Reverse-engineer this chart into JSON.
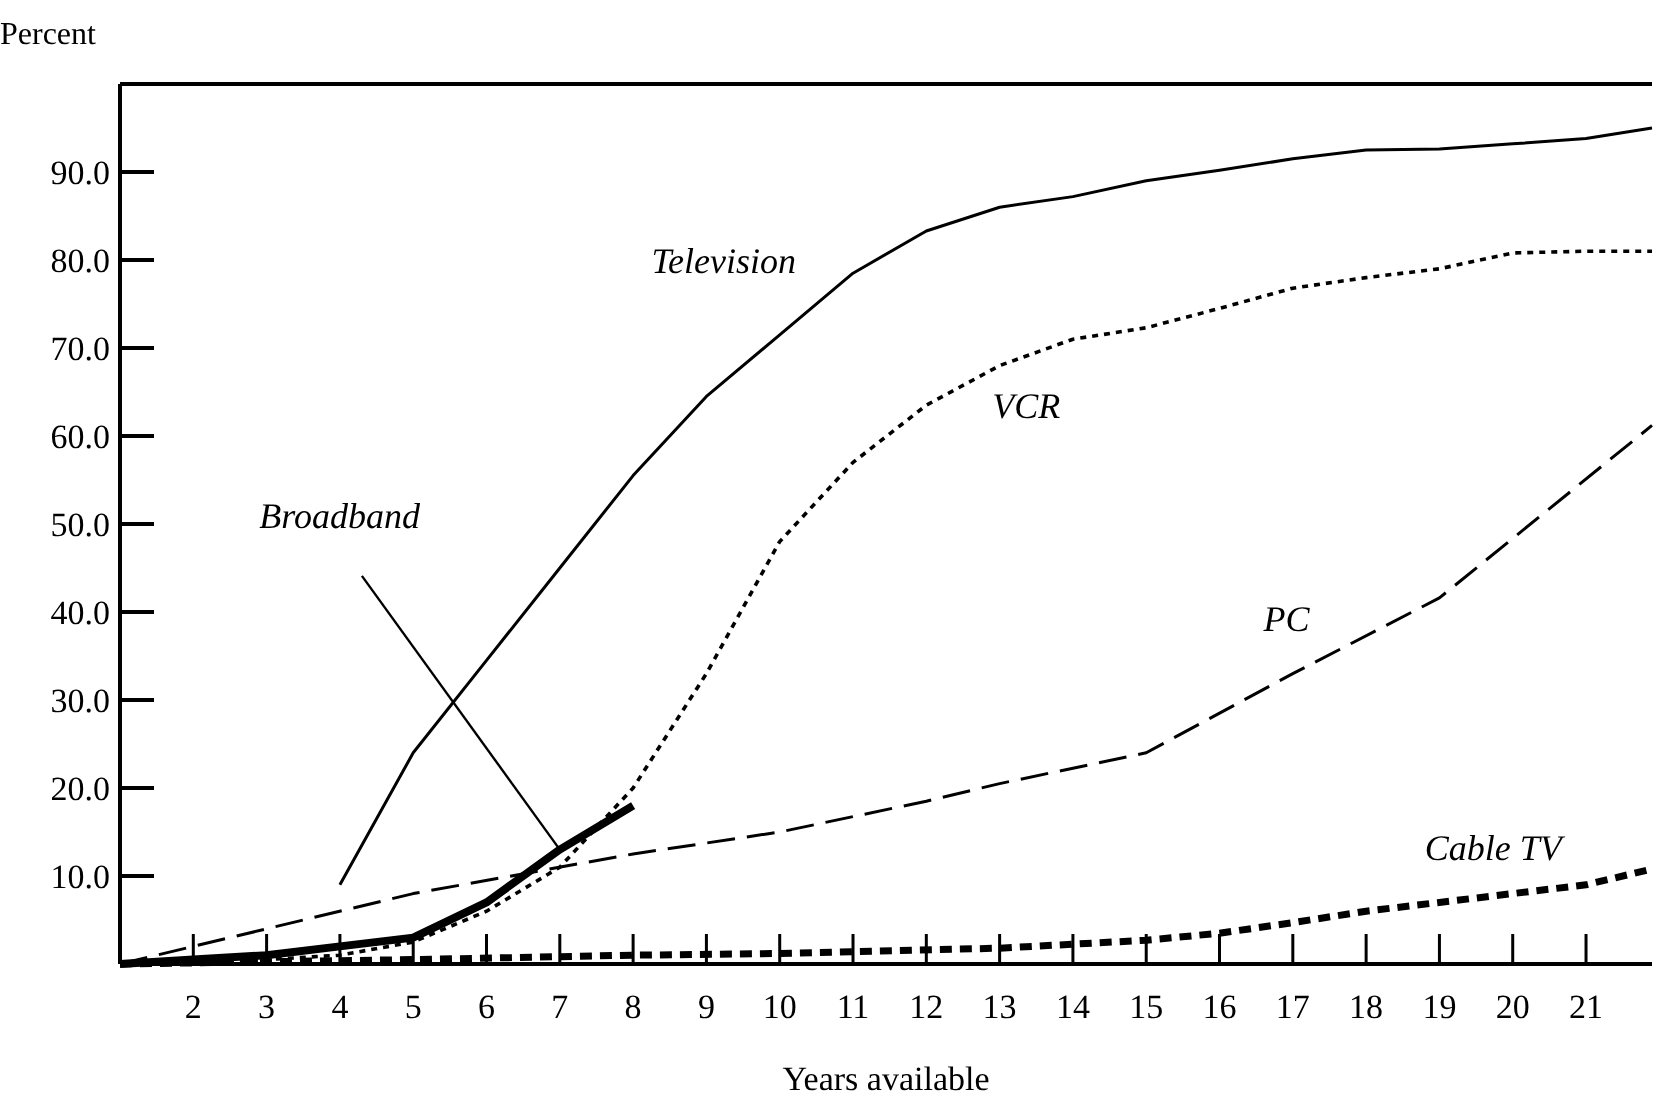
{
  "chart_data": {
    "type": "line",
    "xlabel": "Years available",
    "ylabel": "Percent",
    "xlim": [
      1,
      21.9
    ],
    "ylim": [
      0,
      100
    ],
    "xticks": [
      2,
      3,
      4,
      5,
      6,
      7,
      8,
      9,
      10,
      11,
      12,
      13,
      14,
      15,
      16,
      17,
      18,
      19,
      20,
      21
    ],
    "yticks": [
      {
        "value": 10,
        "label": "10.0"
      },
      {
        "value": 20,
        "label": "20.0"
      },
      {
        "value": 30,
        "label": "30.0"
      },
      {
        "value": 40,
        "label": "40.0"
      },
      {
        "value": 50,
        "label": "50.0"
      },
      {
        "value": 60,
        "label": "60.0"
      },
      {
        "value": 70,
        "label": "70.0"
      },
      {
        "value": 80,
        "label": "80.0"
      },
      {
        "value": 90,
        "label": "90.0"
      }
    ],
    "series": [
      {
        "name": "Television",
        "color": "#000000",
        "line_style": "solid",
        "x": [
          4,
          5,
          6,
          7,
          8,
          9,
          10,
          11,
          12,
          13,
          14,
          15,
          16,
          17,
          18,
          19,
          20,
          21,
          21.9
        ],
        "values": [
          9,
          24,
          34.5,
          45,
          55.5,
          64.5,
          71.5,
          78.5,
          83.3,
          86,
          87.2,
          89,
          90.2,
          91.5,
          92.5,
          92.6,
          93.2,
          93.8,
          95
        ]
      },
      {
        "name": "VCR",
        "color": "#000000",
        "line_style": "dotted",
        "x": [
          1,
          2,
          3,
          4,
          5,
          6,
          7,
          8,
          9,
          10,
          11,
          12,
          13,
          14,
          15,
          16,
          17,
          18,
          19,
          20,
          21,
          21.9
        ],
        "values": [
          0,
          0,
          0.5,
          1,
          2.5,
          6,
          11,
          20,
          33,
          48,
          57,
          63.5,
          68,
          71,
          72.3,
          74.5,
          76.8,
          78,
          79,
          80.8,
          81,
          81
        ]
      },
      {
        "name": "PC",
        "color": "#000000",
        "line_style": "dashed",
        "x": [
          1,
          3,
          5,
          8,
          10,
          12,
          13,
          15,
          17,
          19,
          21.9
        ],
        "values": [
          0,
          4,
          8,
          12.5,
          15,
          18.5,
          20.5,
          24,
          33,
          41.6,
          61.2
        ]
      },
      {
        "name": "Cable TV",
        "color": "#000000",
        "line_style": "dashed",
        "x": [
          1,
          5,
          8,
          10,
          13,
          15,
          16,
          17,
          18,
          19,
          20,
          21,
          21.9
        ],
        "values": [
          0,
          0.5,
          1,
          1.2,
          1.8,
          2.7,
          3.5,
          4.7,
          6,
          7,
          8,
          9,
          10.8
        ]
      },
      {
        "name": "Broadband",
        "color": "#000000",
        "line_style": "solid",
        "x": [
          1,
          2,
          3,
          4,
          5,
          6,
          7,
          8
        ],
        "values": [
          0,
          0.5,
          1,
          2,
          3,
          7,
          13,
          18
        ]
      }
    ]
  }
}
